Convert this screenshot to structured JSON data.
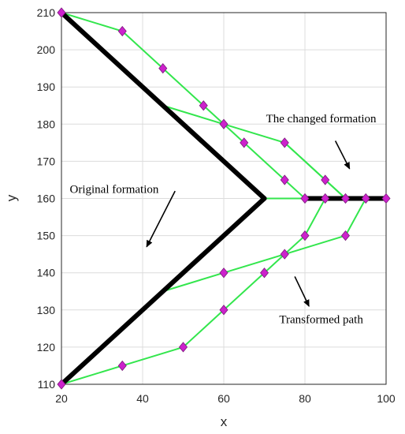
{
  "chart_data": {
    "type": "line",
    "xlabel": "x",
    "ylabel": "y",
    "xlim": [
      20,
      100
    ],
    "ylim": [
      110,
      210
    ],
    "xticks": [
      20,
      40,
      60,
      80,
      100
    ],
    "yticks": [
      110,
      120,
      130,
      140,
      150,
      160,
      170,
      180,
      190,
      200,
      210
    ],
    "grid": true,
    "colors": {
      "path": "#33e64d",
      "marker": "#cc22cc",
      "marker_edge": "#7a1a7a",
      "formation": "#000000",
      "grid": "#dcdcdc"
    },
    "formation_lines": [
      {
        "points": [
          [
            20,
            210
          ],
          [
            70,
            160
          ]
        ]
      },
      {
        "points": [
          [
            20,
            110
          ],
          [
            70,
            160
          ]
        ]
      },
      {
        "points": [
          [
            80,
            160
          ],
          [
            100,
            160
          ]
        ]
      }
    ],
    "paths": [
      {
        "points": [
          [
            20,
            210
          ],
          [
            35,
            205
          ],
          [
            45,
            195
          ],
          [
            55,
            185
          ],
          [
            60,
            180
          ],
          [
            65,
            175
          ],
          [
            75,
            165
          ],
          [
            80,
            160
          ],
          [
            85,
            160
          ],
          [
            90,
            160
          ],
          [
            95,
            160
          ],
          [
            100,
            160
          ]
        ]
      },
      {
        "points": [
          [
            45,
            185
          ],
          [
            60,
            180
          ],
          [
            75,
            175
          ],
          [
            90,
            160
          ]
        ]
      },
      {
        "points": [
          [
            20,
            110
          ],
          [
            35,
            115
          ],
          [
            50,
            120
          ],
          [
            60,
            130
          ],
          [
            70,
            140
          ],
          [
            75,
            145
          ],
          [
            80,
            150
          ],
          [
            85,
            160
          ]
        ]
      },
      {
        "points": [
          [
            45,
            135
          ],
          [
            60,
            140
          ],
          [
            75,
            145
          ],
          [
            90,
            150
          ],
          [
            95,
            160
          ]
        ]
      },
      {
        "points": [
          [
            70,
            160
          ],
          [
            80,
            160
          ]
        ]
      },
      {
        "points": [
          [
            75,
            175
          ],
          [
            85,
            165
          ],
          [
            90,
            160
          ]
        ]
      }
    ],
    "markers": [
      [
        20,
        210
      ],
      [
        35,
        205
      ],
      [
        45,
        195
      ],
      [
        55,
        185
      ],
      [
        60,
        180
      ],
      [
        65,
        175
      ],
      [
        75,
        175
      ],
      [
        75,
        165
      ],
      [
        85,
        165
      ],
      [
        80,
        160
      ],
      [
        85,
        160
      ],
      [
        90,
        160
      ],
      [
        95,
        160
      ],
      [
        100,
        160
      ],
      [
        80,
        150
      ],
      [
        90,
        150
      ],
      [
        75,
        145
      ],
      [
        60,
        140
      ],
      [
        70,
        140
      ],
      [
        60,
        130
      ],
      [
        50,
        120
      ],
      [
        35,
        115
      ],
      [
        20,
        110
      ]
    ],
    "annotations": [
      {
        "text": "The changed formation",
        "x": 84,
        "y": 180.5,
        "arrow_from": [
          87.5,
          175.5
        ],
        "arrow_to": [
          91,
          168
        ]
      },
      {
        "text": "Original formation",
        "x": 33,
        "y": 161.5,
        "arrow_from": [
          48,
          162
        ],
        "arrow_to": [
          41,
          147
        ]
      },
      {
        "text": "Transformed path",
        "x": 84,
        "y": 126.5,
        "arrow_from": [
          77.5,
          139
        ],
        "arrow_to": [
          81,
          131
        ]
      }
    ]
  }
}
